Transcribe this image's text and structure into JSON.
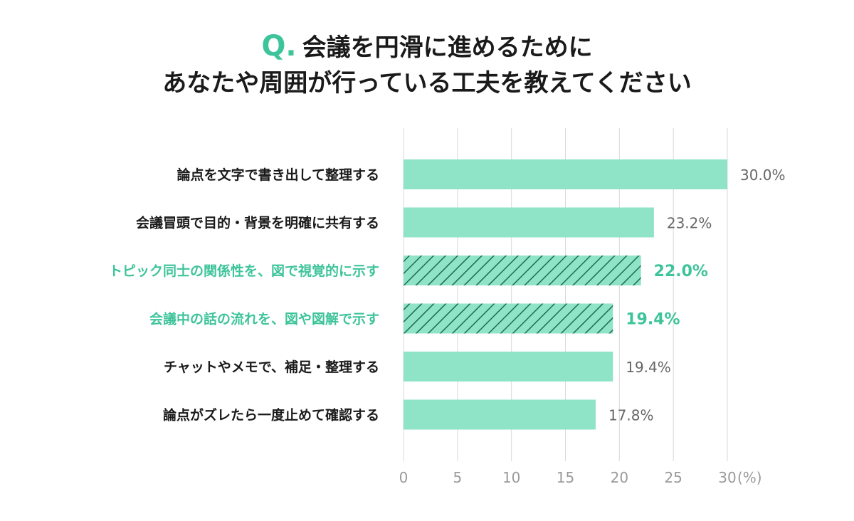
{
  "title": {
    "q_mark": "Q.",
    "line1": "会議を円滑に進めるために",
    "line2": "あなたや周囲が行っている工夫を教えてください"
  },
  "colors": {
    "bar": "#8fe3c6",
    "highlight_text": "#3ec49a",
    "hatch": "#1f6b52",
    "grid": "#d9d9d9",
    "label": "#1a1a1a",
    "value": "#666666",
    "tick": "#9a9a9a"
  },
  "chart_data": {
    "type": "bar",
    "orientation": "horizontal",
    "categories": [
      "論点を文字で書き出して整理する",
      "会議冒頭で目的・背景を明確に共有する",
      "トピック同士の関係性を、図で視覚的に示す",
      "会議中の話の流れを、図や図解で示す",
      "チャットやメモで、補足・整理する",
      "論点がズレたら一度止めて確認する"
    ],
    "values": [
      30.0,
      23.2,
      22.0,
      19.4,
      19.4,
      17.8
    ],
    "value_labels": [
      "30.0%",
      "23.2%",
      "22.0%",
      "19.4%",
      "19.4%",
      "17.8%"
    ],
    "highlighted": [
      false,
      false,
      true,
      true,
      false,
      false
    ],
    "xlim": [
      0,
      30
    ],
    "xticks": [
      "0",
      "5",
      "10",
      "15",
      "20",
      "25",
      "30"
    ],
    "xunit": "(%)",
    "grid": true
  }
}
